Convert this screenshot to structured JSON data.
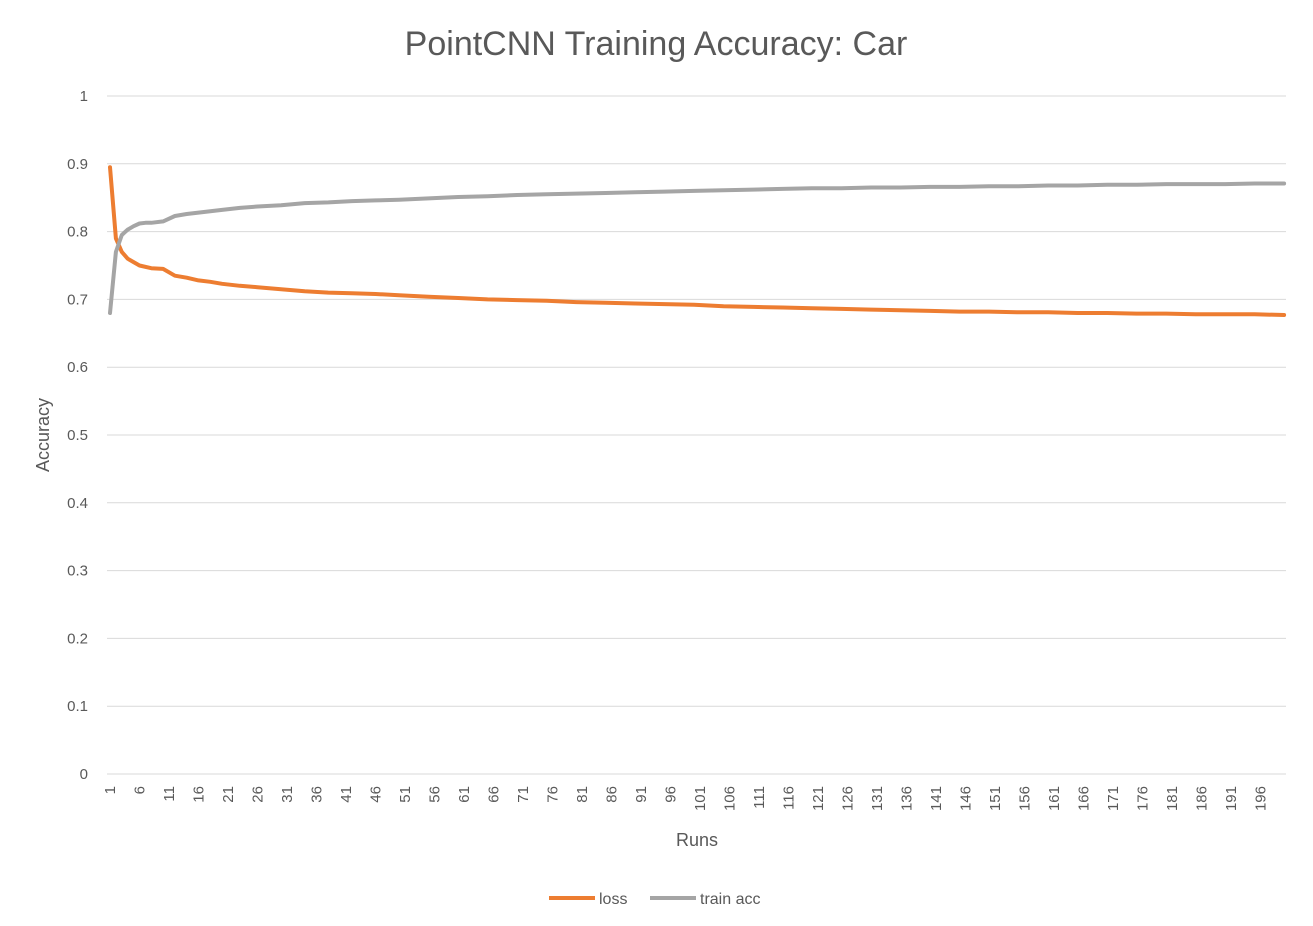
{
  "chart_data": {
    "type": "line",
    "title": "PointCNN Training Accuracy: Car",
    "xlabel": "Runs",
    "ylabel": "Accuracy",
    "ylim": [
      0,
      1
    ],
    "y_ticks": [
      "0",
      "0.1",
      "0.2",
      "0.3",
      "0.4",
      "0.5",
      "0.6",
      "0.7",
      "0.8",
      "0.9",
      "1"
    ],
    "x_ticks": [
      "1",
      "6",
      "11",
      "16",
      "21",
      "26",
      "31",
      "36",
      "41",
      "46",
      "51",
      "56",
      "61",
      "66",
      "71",
      "76",
      "81",
      "86",
      "91",
      "96",
      "101",
      "106",
      "111",
      "116",
      "121",
      "126",
      "131",
      "136",
      "141",
      "146",
      "151",
      "156",
      "161",
      "166",
      "171",
      "176",
      "181",
      "186",
      "191",
      "196"
    ],
    "grid": "horizontal",
    "legend_position": "bottom",
    "series": [
      {
        "name": "loss",
        "color": "#ED7D31",
        "x": [
          1,
          2,
          3,
          4,
          5,
          6,
          8,
          10,
          12,
          14,
          16,
          18,
          20,
          23,
          26,
          30,
          34,
          38,
          42,
          46,
          50,
          55,
          60,
          65,
          70,
          75,
          80,
          85,
          90,
          95,
          100,
          105,
          110,
          115,
          120,
          125,
          130,
          135,
          140,
          145,
          150,
          155,
          160,
          165,
          170,
          175,
          180,
          185,
          190,
          195,
          200
        ],
        "y": [
          0.895,
          0.79,
          0.77,
          0.76,
          0.755,
          0.75,
          0.746,
          0.745,
          0.735,
          0.732,
          0.728,
          0.726,
          0.723,
          0.72,
          0.718,
          0.715,
          0.712,
          0.71,
          0.709,
          0.708,
          0.706,
          0.704,
          0.702,
          0.7,
          0.699,
          0.698,
          0.696,
          0.695,
          0.694,
          0.693,
          0.692,
          0.69,
          0.689,
          0.688,
          0.687,
          0.686,
          0.685,
          0.684,
          0.683,
          0.682,
          0.682,
          0.681,
          0.681,
          0.68,
          0.68,
          0.679,
          0.679,
          0.678,
          0.678,
          0.678,
          0.677
        ]
      },
      {
        "name": "train acc",
        "color": "#A5A5A5",
        "x": [
          1,
          2,
          3,
          4,
          5,
          6,
          7,
          8,
          10,
          12,
          14,
          16,
          18,
          20,
          23,
          26,
          30,
          34,
          38,
          42,
          46,
          50,
          55,
          60,
          65,
          70,
          75,
          80,
          85,
          90,
          95,
          100,
          105,
          110,
          115,
          120,
          125,
          130,
          135,
          140,
          145,
          150,
          155,
          160,
          165,
          170,
          175,
          180,
          185,
          190,
          195,
          200
        ],
        "y": [
          0.68,
          0.77,
          0.795,
          0.803,
          0.808,
          0.812,
          0.813,
          0.813,
          0.815,
          0.823,
          0.826,
          0.828,
          0.83,
          0.832,
          0.835,
          0.837,
          0.839,
          0.842,
          0.843,
          0.845,
          0.846,
          0.847,
          0.849,
          0.851,
          0.852,
          0.854,
          0.855,
          0.856,
          0.857,
          0.858,
          0.859,
          0.86,
          0.861,
          0.862,
          0.863,
          0.864,
          0.864,
          0.865,
          0.865,
          0.866,
          0.866,
          0.867,
          0.867,
          0.868,
          0.868,
          0.869,
          0.869,
          0.87,
          0.87,
          0.87,
          0.871,
          0.871
        ]
      }
    ]
  }
}
